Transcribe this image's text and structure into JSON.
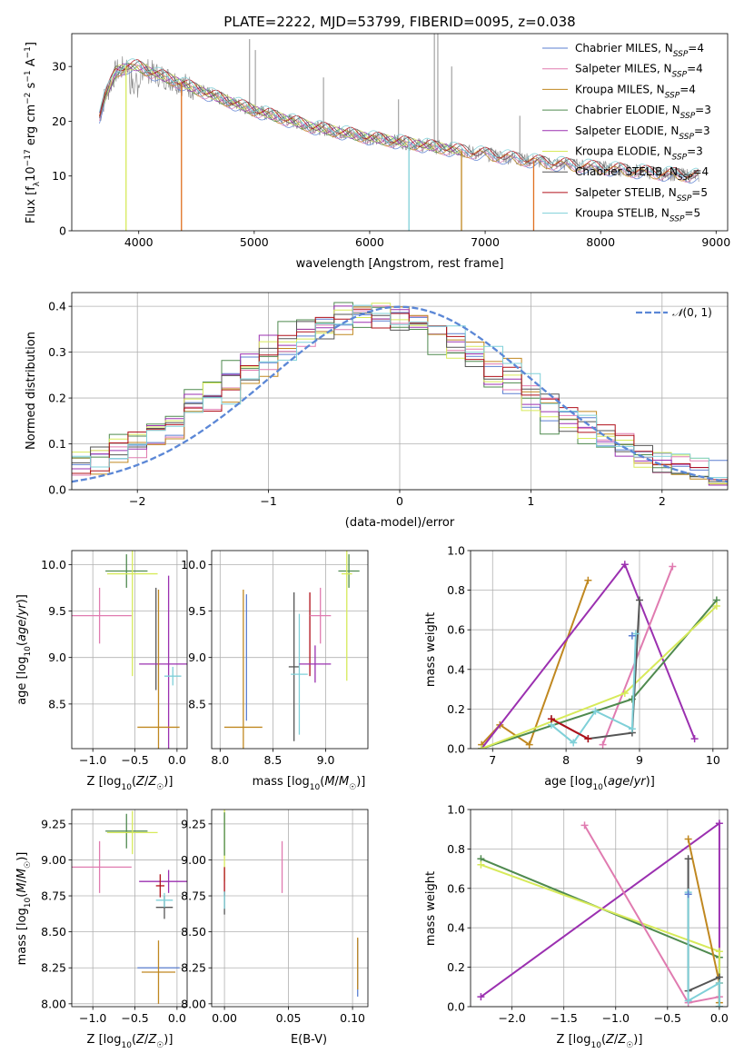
{
  "colors": {
    "Chabrier MILES": "#5b7fd1",
    "Salpeter MILES": "#e07bb0",
    "Kroupa MILES": "#c08820",
    "Chabrier ELODIE": "#4f8a4f",
    "Salpeter ELODIE": "#9b30b0",
    "Kroupa ELODIE": "#d7ea5a",
    "Chabrier STELIB": "#555555",
    "Salpeter STELIB": "#b0101a",
    "Kroupa STELIB": "#7fd0d8",
    "normal": "#5b87d6",
    "data": "#909090",
    "extra_orange": "#e07020"
  },
  "figure": {
    "title": "PLATE=2222, MJD=53799, FIBERID=0095, z=0.038"
  },
  "chart_data": [
    {
      "id": "spectrum",
      "type": "line",
      "xlabel": "wavelength [Angstrom, rest frame]",
      "ylabel": "Flux [f$_\\lambda$10$^{-17}$ erg cm$^{-2}$ s$^{-1}$ A$^{-1}$]",
      "xlim": [
        3420,
        9100
      ],
      "ylim": [
        0,
        36
      ],
      "xticks": [
        4000,
        5000,
        6000,
        7000,
        8000,
        9000
      ],
      "yticks": [
        0,
        10,
        20,
        30
      ],
      "continuum": [
        [
          3660,
          21
        ],
        [
          3700,
          24
        ],
        [
          3800,
          29
        ],
        [
          3900,
          30
        ],
        [
          4000,
          30
        ],
        [
          4100,
          29
        ],
        [
          4300,
          27.5
        ],
        [
          4600,
          25
        ],
        [
          5000,
          22
        ],
        [
          5500,
          19
        ],
        [
          6000,
          17
        ],
        [
          6500,
          15.5
        ],
        [
          7000,
          14
        ],
        [
          7500,
          12.5
        ],
        [
          8000,
          11.5
        ],
        [
          8500,
          10.5
        ],
        [
          8850,
          10
        ]
      ],
      "legend": [
        {
          "label": "Chabrier MILES",
          "nssp": "4"
        },
        {
          "label": "Salpeter MILES",
          "nssp": "4"
        },
        {
          "label": "Kroupa MILES",
          "nssp": "4"
        },
        {
          "label": "Chabrier ELODIE",
          "nssp": "3"
        },
        {
          "label": "Salpeter ELODIE",
          "nssp": "3"
        },
        {
          "label": "Kroupa ELODIE",
          "nssp": "3"
        },
        {
          "label": "Chabrier STELIB",
          "nssp": "4"
        },
        {
          "label": "Salpeter STELIB",
          "nssp": "5"
        },
        {
          "label": "Kroupa STELIB",
          "nssp": "5"
        }
      ]
    },
    {
      "id": "residuals",
      "type": "line",
      "xlabel": "(data-model)/error",
      "ylabel": "Normed distribution",
      "xlim": [
        -2.5,
        2.5
      ],
      "ylim": [
        0,
        0.43
      ],
      "xticks": [
        -2,
        -1,
        0,
        1,
        2
      ],
      "yticks": [
        0.0,
        0.1,
        0.2,
        0.3,
        0.4
      ],
      "legend": "N(0,1)",
      "bin_edges": [
        -2.5,
        2.5,
        35
      ]
    },
    {
      "id": "age_vs_Z",
      "type": "scatter",
      "xlabel": "Z [log10(Z/Z☉)]",
      "ylabel": "age [log10(age/yr)]",
      "xlim": [
        -1.25,
        0.12
      ],
      "ylim": [
        8.02,
        10.15
      ],
      "xticks": [
        -1.0,
        -0.5,
        0.0
      ],
      "yticks": [
        8.5,
        9.0,
        9.5,
        10.0
      ],
      "bars": [
        {
          "series": "Salpeter MILES",
          "x": -0.92,
          "xerr": 0.38,
          "y": 9.45,
          "yerr": 0.3
        },
        {
          "series": "Chabrier ELODIE",
          "x": -0.6,
          "xerr": 0.25,
          "y": 9.93,
          "yerr": 0.18
        },
        {
          "series": "Kroupa ELODIE",
          "x": -0.53,
          "xerr": 0.3,
          "y": 9.9,
          "yerr": 1.1
        },
        {
          "series": "Chabrier STELIB",
          "x": -0.25,
          "xerr": 0.0,
          "y": 9.2,
          "yerr": 0.55
        },
        {
          "series": "Salpeter ELODIE",
          "x": -0.1,
          "xerr": 0.35,
          "y": 8.93,
          "yerr": 0.95
        },
        {
          "series": "Kroupa STELIB",
          "x": -0.05,
          "xerr": 0.1,
          "y": 8.8,
          "yerr": 0.1
        },
        {
          "series": "Kroupa MILES",
          "x": -0.22,
          "xerr": 0.25,
          "y": 8.25,
          "yerr": 1.48
        }
      ]
    },
    {
      "id": "age_vs_mass",
      "type": "scatter",
      "xlabel": "mass [log10(M/M☉)]",
      "ylabel": "",
      "xlim": [
        7.92,
        9.4
      ],
      "ylim": [
        8.02,
        10.15
      ],
      "xticks": [
        8.0,
        8.5,
        9.0
      ],
      "yticks": [
        8.5,
        9.0,
        9.5,
        10.0
      ],
      "bars": [
        {
          "series": "Kroupa MILES",
          "x": 8.22,
          "xerr": 0.18,
          "y": 8.25,
          "yerr": 1.48
        },
        {
          "series": "Chabrier MILES",
          "x": 8.25,
          "xerr": 0.0,
          "y": 9.0,
          "yerr": 0.68
        },
        {
          "series": "Chabrier STELIB",
          "x": 8.7,
          "xerr": 0.05,
          "y": 8.9,
          "yerr": 0.8
        },
        {
          "series": "Kroupa STELIB",
          "x": 8.75,
          "xerr": 0.08,
          "y": 8.82,
          "yerr": 0.65
        },
        {
          "series": "Salpeter STELIB",
          "x": 8.85,
          "xerr": 0.0,
          "y": 9.25,
          "yerr": 0.45
        },
        {
          "series": "Salpeter ELODIE",
          "x": 8.9,
          "xerr": 0.15,
          "y": 8.93,
          "yerr": 0.2
        },
        {
          "series": "Salpeter MILES",
          "x": 8.95,
          "xerr": 0.1,
          "y": 9.45,
          "yerr": 0.3
        },
        {
          "series": "Chabrier ELODIE",
          "x": 9.22,
          "xerr": 0.1,
          "y": 9.93,
          "yerr": 0.18
        },
        {
          "series": "Kroupa ELODIE",
          "x": 9.2,
          "xerr": 0.05,
          "y": 9.9,
          "yerr": 1.15
        }
      ]
    },
    {
      "id": "weight_vs_age",
      "type": "line",
      "xlabel": "age [log10(age/yr)]",
      "ylabel": "mass weight",
      "xlim": [
        6.7,
        10.2
      ],
      "ylim": [
        0,
        1.0
      ],
      "xticks": [
        7,
        8,
        9,
        10
      ],
      "yticks": [
        0.0,
        0.2,
        0.4,
        0.6,
        0.8,
        1.0
      ],
      "series": [
        {
          "name": "Kroupa MILES",
          "x": [
            6.85,
            7.1,
            7.5,
            8.3
          ],
          "y": [
            0.02,
            0.12,
            0.02,
            0.85
          ]
        },
        {
          "name": "Salpeter ELODIE",
          "x": [
            6.85,
            8.8,
            9.75
          ],
          "y": [
            0.0,
            0.93,
            0.05
          ]
        },
        {
          "name": "Salpeter MILES",
          "x": [
            8.5,
            9.45
          ],
          "y": [
            0.02,
            0.92
          ]
        },
        {
          "name": "Chabrier ELODIE",
          "x": [
            6.85,
            8.9,
            10.05
          ],
          "y": [
            0.0,
            0.25,
            0.75
          ]
        },
        {
          "name": "Kroupa ELODIE",
          "x": [
            6.85,
            8.8,
            10.05
          ],
          "y": [
            0.0,
            0.28,
            0.72
          ]
        },
        {
          "name": "Chabrier STELIB",
          "x": [
            7.8,
            8.3,
            8.9,
            9.0
          ],
          "y": [
            0.15,
            0.05,
            0.08,
            0.75
          ]
        },
        {
          "name": "Kroupa STELIB",
          "x": [
            7.8,
            8.1,
            8.4,
            8.9,
            8.95
          ],
          "y": [
            0.12,
            0.03,
            0.19,
            0.1,
            0.58
          ]
        },
        {
          "name": "Salpeter STELIB",
          "x": [
            7.8,
            8.3
          ],
          "y": [
            0.15,
            0.05
          ]
        },
        {
          "name": "Chabrier MILES",
          "x": [
            8.9
          ],
          "y": [
            0.57
          ]
        }
      ]
    },
    {
      "id": "mass_vs_Z",
      "type": "scatter",
      "xlabel": "Z [log10(Z/Z☉)]",
      "ylabel": "mass [log10(M/M☉)]",
      "xlim": [
        -1.25,
        0.12
      ],
      "ylim": [
        7.98,
        9.35
      ],
      "xticks": [
        -1.0,
        -0.5,
        0.0
      ],
      "yticks": [
        8.0,
        8.25,
        8.5,
        8.75,
        9.0,
        9.25
      ],
      "bars": [
        {
          "series": "Salpeter MILES",
          "x": -0.92,
          "xerr": 0.38,
          "y": 8.95,
          "yerr": 0.18
        },
        {
          "series": "Chabrier ELODIE",
          "x": -0.6,
          "xerr": 0.25,
          "y": 9.2,
          "yerr": 0.12
        },
        {
          "series": "Kroupa ELODIE",
          "x": -0.53,
          "xerr": 0.3,
          "y": 9.19,
          "yerr": 0.15
        },
        {
          "series": "Salpeter ELODIE",
          "x": -0.1,
          "xerr": 0.35,
          "y": 8.85,
          "yerr": 0.08
        },
        {
          "series": "Salpeter STELIB",
          "x": -0.2,
          "xerr": 0.05,
          "y": 8.82,
          "yerr": 0.08
        },
        {
          "series": "Chabrier STELIB",
          "x": -0.15,
          "xerr": 0.1,
          "y": 8.67,
          "yerr": 0.08
        },
        {
          "series": "Kroupa STELIB",
          "x": -0.15,
          "xerr": 0.1,
          "y": 8.72,
          "yerr": 0.05
        },
        {
          "series": "Chabrier MILES",
          "x": -0.22,
          "xerr": 0.25,
          "y": 8.25,
          "yerr": 0.0
        },
        {
          "series": "Kroupa MILES",
          "x": -0.22,
          "xerr": 0.2,
          "y": 8.22,
          "yerr": 0.22
        }
      ]
    },
    {
      "id": "mass_vs_EBV",
      "type": "scatter",
      "xlabel": "E(B-V)",
      "ylabel": "",
      "xlim": [
        -0.01,
        0.112
      ],
      "ylim": [
        7.98,
        9.35
      ],
      "xticks": [
        0.0,
        0.05,
        0.1
      ],
      "yticks": [
        8.0,
        8.25,
        8.5,
        8.75,
        9.0,
        9.25
      ],
      "bars": [
        {
          "series": "Kroupa ELODIE",
          "x": 0.0,
          "xerr": 0.0,
          "y": 9.1,
          "yerr": 0.25
        },
        {
          "series": "Chabrier ELODIE",
          "x": 0.0,
          "xerr": 0.0,
          "y": 9.18,
          "yerr": 0.15
        },
        {
          "series": "Salpeter STELIB",
          "x": 0.0,
          "xerr": 0.0,
          "y": 8.85,
          "yerr": 0.1
        },
        {
          "series": "Chabrier STELIB",
          "x": 0.0,
          "xerr": 0.0,
          "y": 8.7,
          "yerr": 0.08
        },
        {
          "series": "Kroupa STELIB",
          "x": 0.0,
          "xerr": 0.0,
          "y": 8.72,
          "yerr": 0.06
        },
        {
          "series": "Salpeter MILES",
          "x": 0.045,
          "xerr": 0.0,
          "y": 8.95,
          "yerr": 0.18
        },
        {
          "series": "Chabrier MILES",
          "x": 0.104,
          "xerr": 0.0,
          "y": 8.25,
          "yerr": 0.2
        },
        {
          "series": "Kroupa MILES",
          "x": 0.104,
          "xerr": 0.0,
          "y": 8.28,
          "yerr": 0.18
        }
      ]
    },
    {
      "id": "weight_vs_Z",
      "type": "line",
      "xlabel": "Z [log10(Z/Z☉)]",
      "ylabel": "mass weight",
      "xlim": [
        -2.4,
        0.08
      ],
      "ylim": [
        0,
        1.0
      ],
      "xticks": [
        -2.0,
        -1.5,
        -1.0,
        -0.5,
        0.0
      ],
      "yticks": [
        0.0,
        0.2,
        0.4,
        0.6,
        0.8,
        1.0
      ],
      "series": [
        {
          "name": "Salpeter ELODIE",
          "x": [
            -2.3,
            0.0,
            0.0
          ],
          "y": [
            0.05,
            0.93,
            0.0
          ]
        },
        {
          "name": "Chabrier ELODIE",
          "x": [
            -2.3,
            0.0,
            0.0
          ],
          "y": [
            0.75,
            0.25,
            0.0
          ]
        },
        {
          "name": "Kroupa ELODIE",
          "x": [
            -2.3,
            0.0,
            0.0
          ],
          "y": [
            0.72,
            0.28,
            0.0
          ]
        },
        {
          "name": "Salpeter MILES",
          "x": [
            -1.3,
            -0.3,
            0.0
          ],
          "y": [
            0.92,
            0.02,
            0.05
          ]
        },
        {
          "name": "Kroupa MILES",
          "x": [
            -0.3,
            0.0,
            0.0
          ],
          "y": [
            0.85,
            0.12,
            0.02
          ]
        },
        {
          "name": "Chabrier STELIB",
          "x": [
            -0.3,
            -0.3,
            0.0,
            0.0
          ],
          "y": [
            0.75,
            0.08,
            0.15,
            0.0
          ]
        },
        {
          "name": "Kroupa STELIB",
          "x": [
            -0.3,
            -0.3,
            0.0,
            0.0
          ],
          "y": [
            0.58,
            0.03,
            0.12,
            0.0
          ]
        },
        {
          "name": "Chabrier MILES",
          "x": [
            -0.3
          ],
          "y": [
            0.57
          ]
        }
      ]
    }
  ]
}
